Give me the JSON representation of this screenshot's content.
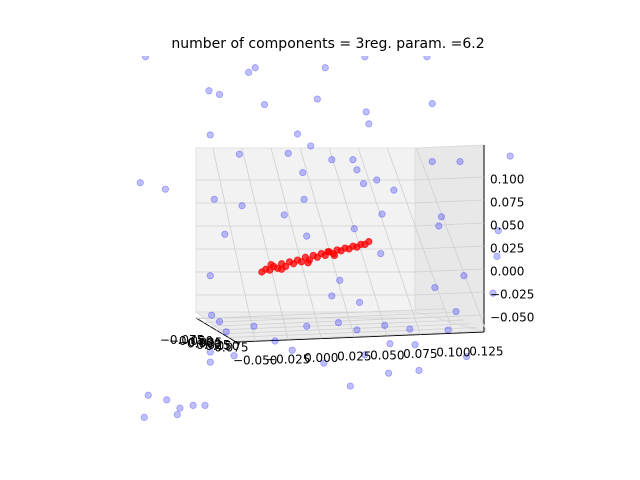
{
  "chart_data": {
    "type": "scatter3d",
    "title": "number of components = 3reg. param. =6.2",
    "xlim": [
      -0.06,
      0.13
    ],
    "xticks": [
      {
        "value": -0.05,
        "label": "−0.050"
      },
      {
        "value": -0.025,
        "label": "−0.025"
      },
      {
        "value": 0,
        "label": "0.000"
      },
      {
        "value": 0.025,
        "label": "0.025"
      },
      {
        "value": 0.05,
        "label": "0.050"
      },
      {
        "value": 0.075,
        "label": "0.075"
      },
      {
        "value": 0.1,
        "label": "0.100"
      },
      {
        "value": 0.125,
        "label": "0.125"
      }
    ],
    "ylim": [
      -0.08,
      0.08
    ],
    "yticks": [
      {
        "value": -0.075,
        "label": "−0.075"
      },
      {
        "value": -0.05,
        "label": "−0.050"
      },
      {
        "value": -0.025,
        "label": "−0.025"
      },
      {
        "value": 0,
        "label": "0.000"
      },
      {
        "value": 0.025,
        "label": "0.025"
      },
      {
        "value": 0.05,
        "label": "0.050"
      },
      {
        "value": 0.075,
        "label": "0.075"
      }
    ],
    "zlim": [
      -0.06,
      0.12
    ],
    "zticks": [
      {
        "value": -0.05,
        "label": "−0.050"
      },
      {
        "value": -0.025,
        "label": "−0.025"
      },
      {
        "value": 0,
        "label": "0.000"
      },
      {
        "value": 0.025,
        "label": "0.025"
      },
      {
        "value": 0.05,
        "label": "0.050"
      },
      {
        "value": 0.075,
        "label": "0.075"
      },
      {
        "value": 0.1,
        "label": "0.100"
      }
    ],
    "grid": true,
    "series": [
      {
        "color": "#0000ff",
        "x": [
          -0.133,
          -0.055,
          -0.05,
          0.003,
          0.033,
          0.08,
          -0.085,
          -0.077,
          -0.043,
          -0.003,
          0.034,
          0.084,
          0.036,
          -0.084,
          -0.018,
          -0.062,
          -0.025,
          -0.008,
          0.008,
          0.024,
          0.084,
          0.105,
          0.143,
          -0.137,
          -0.118,
          -0.014,
          0.027,
          0.042,
          0.032,
          0.055,
          -0.081,
          -0.06,
          -0.013,
          -0.028,
          0.046,
          0.091,
          0.089,
          -0.073,
          0.025,
          -0.011,
          0.134,
          0.045,
          0.133,
          -0.084,
          0.014,
          0.108,
          0.008,
          0.029,
          0.086,
          0.13,
          -0.083,
          -0.077,
          -0.072,
          -0.051,
          -0.011,
          0.013,
          0.027,
          0.048,
          0.067,
          0.102,
          -0.035,
          -0.022,
          -0.066,
          -0.084,
          -0.084,
          0.052,
          0.071,
          0.096,
          0.11,
          0.074,
          0.033,
          0.002,
          0.051,
          0.022,
          -0.131,
          -0.117,
          -0.107,
          -0.097,
          -0.088,
          -0.109,
          -0.134
        ],
        "values": [
          0.234,
          0.217,
          0.222,
          0.222,
          0.234,
          0.234,
          0.197,
          0.193,
          0.182,
          0.188,
          0.174,
          0.183,
          0.161,
          0.149,
          0.15,
          0.128,
          0.129,
          0.137,
          0.122,
          0.122,
          0.12,
          0.12,
          0.126,
          0.097,
          0.09,
          0.108,
          0.111,
          0.1,
          0.096,
          0.089,
          0.079,
          0.072,
          0.079,
          0.062,
          0.063,
          0.06,
          0.05,
          0.041,
          0.047,
          0.039,
          0.045,
          0.02,
          0.017,
          -0.004,
          -0.009,
          -0.004,
          -0.026,
          -0.033,
          -0.017,
          -0.023,
          -0.047,
          -0.054,
          -0.065,
          -0.059,
          -0.059,
          -0.055,
          -0.063,
          -0.058,
          -0.062,
          -0.043,
          -0.075,
          -0.085,
          -0.091,
          -0.087,
          -0.098,
          -0.078,
          -0.079,
          -0.063,
          -0.092,
          -0.107,
          -0.09,
          -0.099,
          -0.11,
          -0.124,
          -0.134,
          -0.139,
          -0.148,
          -0.145,
          -0.145,
          -0.155,
          -0.158
        ]
      },
      {
        "color": "#ff0000",
        "x": [
          -0.045,
          -0.042,
          -0.039,
          -0.036,
          -0.033,
          -0.03,
          -0.027,
          -0.024,
          -0.021,
          -0.018,
          -0.015,
          -0.012,
          -0.009,
          -0.006,
          -0.003,
          0.0,
          0.003,
          0.006,
          0.009,
          0.012,
          0.015,
          0.018,
          0.021,
          0.024,
          0.027,
          0.03,
          0.033,
          0.036,
          -0.03,
          -0.01,
          0.01,
          -0.038,
          0.005
        ],
        "values": [
          0.0,
          0.003,
          0.002,
          0.006,
          0.004,
          0.009,
          0.006,
          0.011,
          0.009,
          0.013,
          0.011,
          0.016,
          0.013,
          0.018,
          0.016,
          0.02,
          0.018,
          0.022,
          0.02,
          0.024,
          0.023,
          0.026,
          0.025,
          0.028,
          0.027,
          0.03,
          0.03,
          0.033,
          0.003,
          0.01,
          0.018,
          0.008,
          0.022
        ]
      }
    ]
  }
}
